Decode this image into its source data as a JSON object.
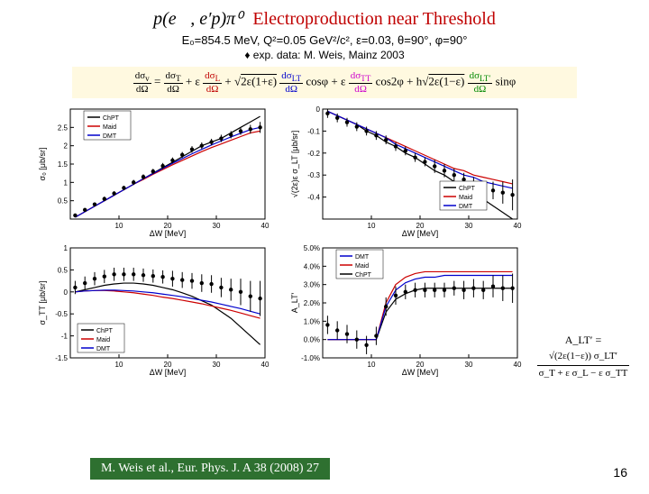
{
  "title_formula": "p(e⃗, e′p)π⁰",
  "title_text": "Electroproduction near Threshold",
  "subtitle": "E₀=854.5 MeV,  Q²=0.05 GeV²/c²,  ε=0.03,  θ=90°,  φ=90°",
  "expdata_label": "exp. data: M. Weis, Mainz 2003",
  "equation": "dσᵥ/dΩ = dσ_T/dΩ + ε dσ_L/dΩ + √(2ε(1+ε)) dσ_LT/dΩ cosφ + ε dσ_TT/dΩ cos2φ + h√(2ε(1−ε)) dσ_LT′/dΩ sinφ",
  "citation": "M. Weis et al., Eur. Phys. J. A 38 (2008) 27",
  "pagenum": "16",
  "alt_formula_lhs": "A_LT′ =",
  "alt_formula_num": "√(2ε(1−ε)) σ_LT′",
  "alt_formula_den": "σ_T + ε σ_L − ε σ_TT",
  "legends": [
    "ChPT",
    "Maid",
    "DMT"
  ],
  "legend_colors": [
    "#000000",
    "#cc0000",
    "#0000cc"
  ],
  "panels": {
    "topleft": {
      "ylabel": "σ₀ [μb/sr]",
      "xlabel": "ΔW [MeV]",
      "xlim": [
        0,
        40
      ],
      "xticks": [
        10,
        20,
        30,
        40
      ],
      "ylim": [
        0,
        3
      ],
      "yticks": [
        0.5,
        1,
        1.5,
        2,
        2.5
      ],
      "data_x": [
        1,
        3,
        5,
        7,
        9,
        11,
        13,
        15,
        17,
        19,
        21,
        23,
        25,
        27,
        29,
        31,
        33,
        35,
        37,
        39
      ],
      "data_y": [
        0.1,
        0.25,
        0.4,
        0.55,
        0.7,
        0.85,
        1.0,
        1.15,
        1.3,
        1.45,
        1.6,
        1.75,
        1.9,
        2.0,
        2.1,
        2.2,
        2.3,
        2.4,
        2.45,
        2.5
      ],
      "data_err": [
        0.05,
        0.05,
        0.05,
        0.06,
        0.06,
        0.06,
        0.07,
        0.07,
        0.07,
        0.08,
        0.08,
        0.08,
        0.09,
        0.09,
        0.09,
        0.1,
        0.1,
        0.1,
        0.12,
        0.15
      ],
      "curves": {
        "chpt": [
          0.05,
          0.2,
          0.35,
          0.5,
          0.65,
          0.8,
          0.95,
          1.1,
          1.25,
          1.4,
          1.55,
          1.7,
          1.85,
          2.0,
          2.1,
          2.2,
          2.35,
          2.5,
          2.65,
          2.8
        ],
        "maid": [
          0.05,
          0.2,
          0.35,
          0.5,
          0.65,
          0.8,
          0.95,
          1.08,
          1.22,
          1.35,
          1.48,
          1.6,
          1.72,
          1.84,
          1.95,
          2.05,
          2.15,
          2.25,
          2.35,
          2.4
        ],
        "dmt": [
          0.05,
          0.2,
          0.35,
          0.5,
          0.65,
          0.8,
          0.95,
          1.1,
          1.24,
          1.38,
          1.52,
          1.65,
          1.78,
          1.9,
          2.02,
          2.13,
          2.24,
          2.34,
          2.44,
          2.5
        ]
      }
    },
    "topright": {
      "ylabel": "√(2ε)ε σ_LT [μb/sr]",
      "xlabel": "ΔW [MeV]",
      "xlim": [
        0,
        40
      ],
      "xticks": [
        10,
        20,
        30,
        40
      ],
      "ylim": [
        -0.5,
        0
      ],
      "yticks": [
        -0.4,
        -0.3,
        -0.2,
        -0.1,
        -0.0
      ],
      "data_x": [
        1,
        3,
        5,
        7,
        9,
        11,
        13,
        15,
        17,
        19,
        21,
        23,
        25,
        27,
        29,
        31,
        33,
        35,
        37,
        39
      ],
      "data_y": [
        -0.02,
        -0.04,
        -0.06,
        -0.08,
        -0.1,
        -0.12,
        -0.14,
        -0.17,
        -0.19,
        -0.22,
        -0.24,
        -0.26,
        -0.28,
        -0.3,
        -0.32,
        -0.34,
        -0.36,
        -0.37,
        -0.38,
        -0.39
      ],
      "data_err": [
        0.02,
        0.02,
        0.02,
        0.02,
        0.02,
        0.02,
        0.02,
        0.02,
        0.02,
        0.02,
        0.02,
        0.03,
        0.03,
        0.03,
        0.03,
        0.03,
        0.03,
        0.04,
        0.05,
        0.07
      ],
      "curves": {
        "chpt": [
          -0.01,
          -0.03,
          -0.05,
          -0.07,
          -0.1,
          -0.12,
          -0.15,
          -0.17,
          -0.2,
          -0.22,
          -0.25,
          -0.28,
          -0.3,
          -0.33,
          -0.36,
          -0.38,
          -0.41,
          -0.44,
          -0.47,
          -0.5
        ],
        "maid": [
          -0.01,
          -0.03,
          -0.05,
          -0.07,
          -0.09,
          -0.11,
          -0.13,
          -0.15,
          -0.17,
          -0.19,
          -0.21,
          -0.23,
          -0.25,
          -0.27,
          -0.28,
          -0.3,
          -0.31,
          -0.32,
          -0.33,
          -0.34
        ],
        "dmt": [
          -0.01,
          -0.03,
          -0.05,
          -0.07,
          -0.09,
          -0.11,
          -0.13,
          -0.16,
          -0.18,
          -0.2,
          -0.22,
          -0.24,
          -0.26,
          -0.28,
          -0.3,
          -0.31,
          -0.33,
          -0.34,
          -0.35,
          -0.36
        ]
      }
    },
    "botleft": {
      "ylabel": "σ_TT [μb/sr]",
      "xlabel": "ΔW [MeV]",
      "xlim": [
        0,
        40
      ],
      "xticks": [
        10,
        20,
        30,
        40
      ],
      "ylim": [
        -1.5,
        1
      ],
      "yticks": [
        -1.5,
        -1,
        -0.5,
        0,
        0.5,
        1
      ],
      "data_x": [
        1,
        3,
        5,
        7,
        9,
        11,
        13,
        15,
        17,
        19,
        21,
        23,
        25,
        27,
        29,
        31,
        33,
        35,
        37,
        39
      ],
      "data_y": [
        0.1,
        0.2,
        0.3,
        0.35,
        0.4,
        0.4,
        0.4,
        0.38,
        0.36,
        0.34,
        0.3,
        0.27,
        0.25,
        0.2,
        0.18,
        0.1,
        0.05,
        0,
        -0.1,
        -0.15
      ],
      "data_err": [
        0.15,
        0.15,
        0.15,
        0.15,
        0.15,
        0.15,
        0.15,
        0.15,
        0.15,
        0.15,
        0.18,
        0.18,
        0.18,
        0.2,
        0.2,
        0.22,
        0.25,
        0.3,
        0.35,
        0.4
      ],
      "curves": {
        "chpt": [
          0,
          0.05,
          0.1,
          0.15,
          0.18,
          0.2,
          0.2,
          0.18,
          0.15,
          0.1,
          0.05,
          -0.02,
          -0.1,
          -0.2,
          -0.3,
          -0.45,
          -0.6,
          -0.8,
          -1.0,
          -1.2
        ],
        "maid": [
          0,
          0.02,
          0.03,
          0.03,
          0.02,
          0,
          -0.02,
          -0.05,
          -0.08,
          -0.12,
          -0.15,
          -0.19,
          -0.23,
          -0.27,
          -0.32,
          -0.37,
          -0.42,
          -0.48,
          -0.54,
          -0.6
        ],
        "dmt": [
          0,
          0.02,
          0.03,
          0.04,
          0.04,
          0.03,
          0.02,
          0,
          -0.02,
          -0.05,
          -0.08,
          -0.11,
          -0.15,
          -0.19,
          -0.23,
          -0.28,
          -0.33,
          -0.38,
          -0.44,
          -0.5
        ]
      }
    },
    "botright": {
      "ylabel": "A_LT′",
      "xlabel": "ΔW [MeV]",
      "xlim": [
        0,
        40
      ],
      "xticks": [
        10,
        20,
        30,
        40
      ],
      "ylim": [
        -0.01,
        0.05
      ],
      "yticks": [
        -0.01,
        0,
        0.01,
        0.02,
        0.03,
        0.04,
        0.05
      ],
      "ytick_labels": [
        "-1.0%",
        "0.0%",
        "1.0%",
        "2.0%",
        "3.0%",
        "4.0%",
        "5.0%"
      ],
      "data_x": [
        1,
        3,
        5,
        7,
        9,
        11,
        13,
        15,
        17,
        19,
        21,
        23,
        25,
        27,
        29,
        31,
        33,
        35,
        37,
        39
      ],
      "data_y": [
        0.008,
        0.005,
        0.003,
        0.0,
        -0.003,
        0.002,
        0.018,
        0.024,
        0.026,
        0.027,
        0.027,
        0.027,
        0.027,
        0.028,
        0.027,
        0.028,
        0.027,
        0.029,
        0.028,
        0.028
      ],
      "data_err": [
        0.005,
        0.005,
        0.005,
        0.005,
        0.005,
        0.005,
        0.005,
        0.005,
        0.004,
        0.004,
        0.004,
        0.004,
        0.004,
        0.004,
        0.005,
        0.005,
        0.005,
        0.006,
        0.007,
        0.008
      ],
      "curves": {
        "chpt": [
          0,
          0,
          0,
          0,
          0,
          0,
          0.015,
          0.022,
          0.025,
          0.027,
          0.028,
          0.028,
          0.028,
          0.028,
          0.028,
          0.028,
          0.028,
          0.028,
          0.028,
          0.028
        ],
        "maid": [
          0,
          0,
          0,
          0,
          0,
          0,
          0.02,
          0.03,
          0.034,
          0.036,
          0.037,
          0.037,
          0.037,
          0.037,
          0.037,
          0.037,
          0.037,
          0.037,
          0.037,
          0.037
        ],
        "dmt": [
          0,
          0,
          0,
          0,
          0,
          0,
          0.018,
          0.027,
          0.031,
          0.033,
          0.034,
          0.034,
          0.035,
          0.035,
          0.035,
          0.035,
          0.035,
          0.035,
          0.035,
          0.035
        ]
      },
      "legend_order": [
        "DMT",
        "Maid",
        "ChPT"
      ],
      "legend_colors_order": [
        "#0000cc",
        "#cc0000",
        "#000000"
      ]
    }
  },
  "axis_color": "#000000",
  "tick_fontsize": 8,
  "label_fontsize": 9,
  "marker_size": 2.2,
  "line_width": 1.2
}
